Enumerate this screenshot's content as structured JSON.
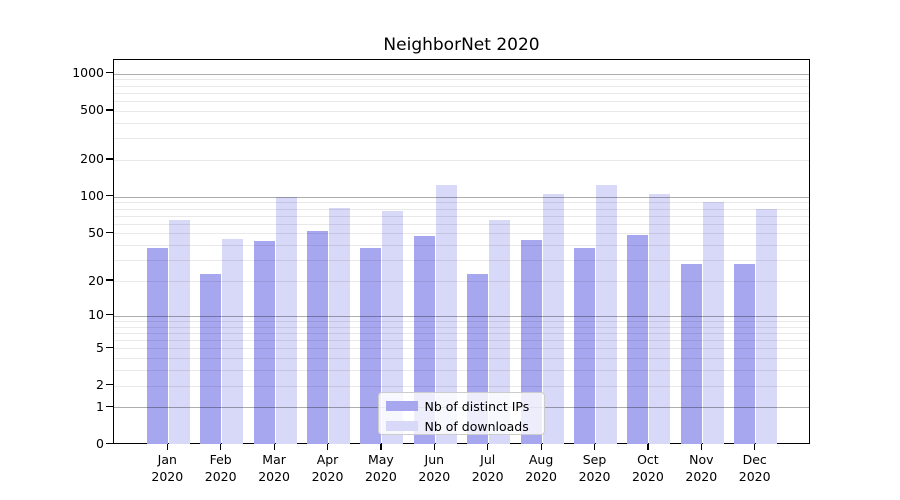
{
  "chart_data": {
    "type": "bar",
    "title": "NeighborNet 2020",
    "categories": [
      "Jan",
      "Feb",
      "Mar",
      "Apr",
      "May",
      "Jun",
      "Jul",
      "Aug",
      "Sep",
      "Oct",
      "Nov",
      "Dec"
    ],
    "x_year_label": "2020",
    "series": [
      {
        "name": "Nb of distinct IPs",
        "color": "#a7a7f0",
        "values": [
          38,
          23,
          43,
          52,
          38,
          48,
          23,
          44,
          38,
          49,
          28,
          28
        ]
      },
      {
        "name": "Nb of downloads",
        "color": "#d8d8f8",
        "values": [
          64,
          45,
          100,
          81,
          77,
          125,
          65,
          106,
          125,
          105,
          90,
          80
        ]
      }
    ],
    "yaxis": {
      "scale": "log-like (log of 1+value), 0 at baseline",
      "ticks": [
        0,
        1,
        2,
        5,
        10,
        20,
        50,
        100,
        200,
        500,
        1000
      ],
      "major_gridline_values": [
        1,
        10,
        100,
        1000
      ],
      "top_tick": 1000
    },
    "legend": {
      "position": "lower center"
    },
    "grid": "on"
  }
}
